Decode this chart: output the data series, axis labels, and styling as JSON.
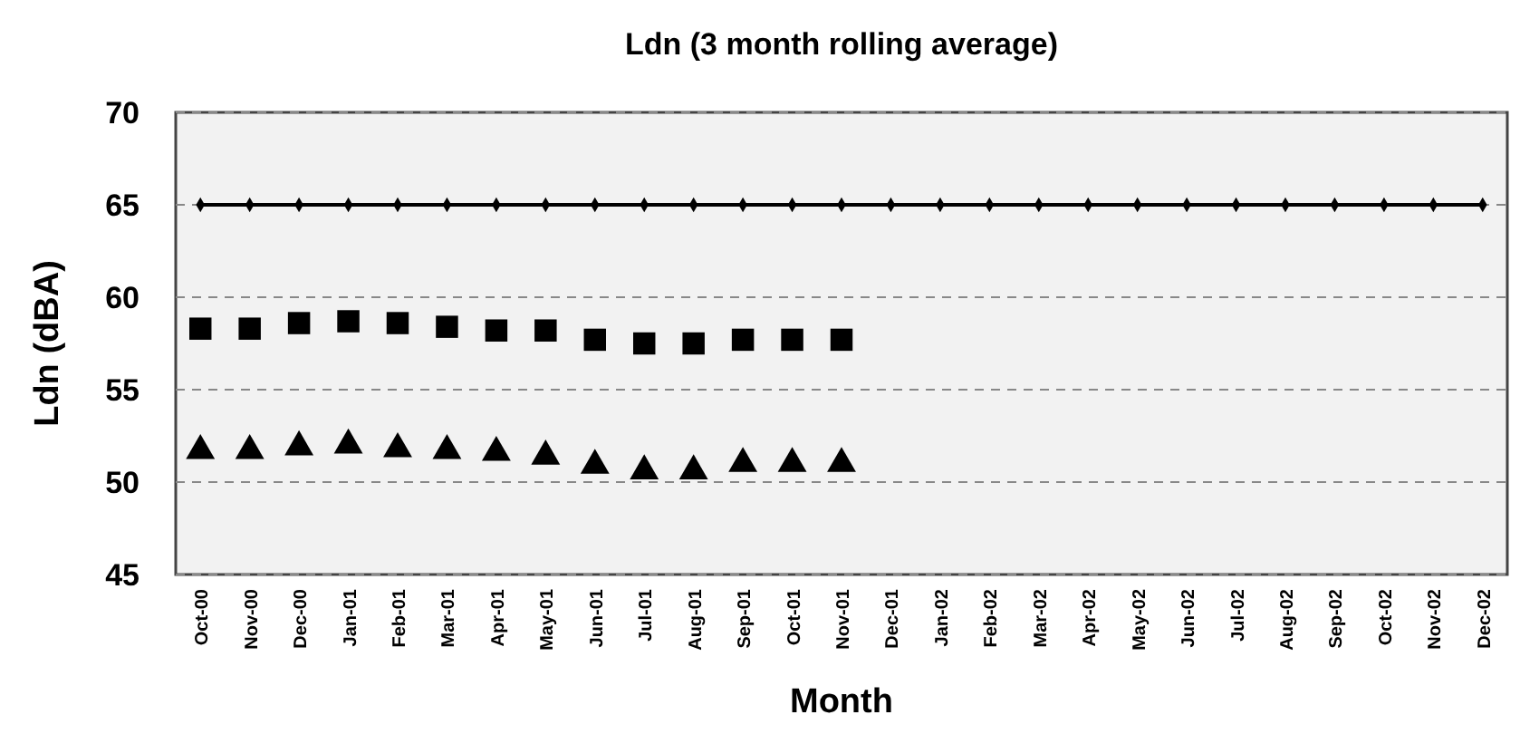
{
  "chart_data": {
    "type": "line",
    "title": "Ldn (3 month rolling average)",
    "xlabel": "Month",
    "ylabel": "Ldn (dBA)",
    "categories": [
      "Oct-00",
      "Nov-00",
      "Dec-00",
      "Jan-01",
      "Feb-01",
      "Mar-01",
      "Apr-01",
      "May-01",
      "Jun-01",
      "Jul-01",
      "Aug-01",
      "Sep-01",
      "Oct-01",
      "Nov-01",
      "Dec-01",
      "Jan-02",
      "Feb-02",
      "Mar-02",
      "Apr-02",
      "May-02",
      "Jun-02",
      "Jul-02",
      "Aug-02",
      "Sep-02",
      "Oct-02",
      "Nov-02",
      "Dec-02"
    ],
    "series": [
      {
        "color": "#000000",
        "marker": "diamond",
        "values": [
          65,
          65,
          65,
          65,
          65,
          65,
          65,
          65,
          65,
          65,
          65,
          65,
          65,
          65,
          65,
          65,
          65,
          65,
          65,
          65,
          65,
          65,
          65,
          65,
          65,
          65,
          65
        ]
      },
      {
        "type": "scatter",
        "color": "#000000",
        "marker": "square",
        "values": [
          58.3,
          58.3,
          58.6,
          58.7,
          58.6,
          58.4,
          58.2,
          58.2,
          57.7,
          57.5,
          57.5,
          57.7,
          57.7,
          57.7,
          null,
          null,
          null,
          null,
          null,
          null,
          null,
          null,
          null,
          null,
          null,
          null,
          null
        ]
      },
      {
        "type": "scatter",
        "color": "#000000",
        "marker": "triangle",
        "values": [
          51.7,
          51.7,
          51.9,
          52.0,
          51.8,
          51.7,
          51.6,
          51.4,
          50.9,
          50.6,
          50.6,
          51.0,
          51.0,
          51.0,
          null,
          null,
          null,
          null,
          null,
          null,
          null,
          null,
          null,
          null,
          null,
          null,
          null
        ]
      }
    ],
    "ylim": [
      45,
      70
    ],
    "yticks": [
      45,
      50,
      55,
      60,
      65,
      70
    ],
    "grid": "y"
  }
}
